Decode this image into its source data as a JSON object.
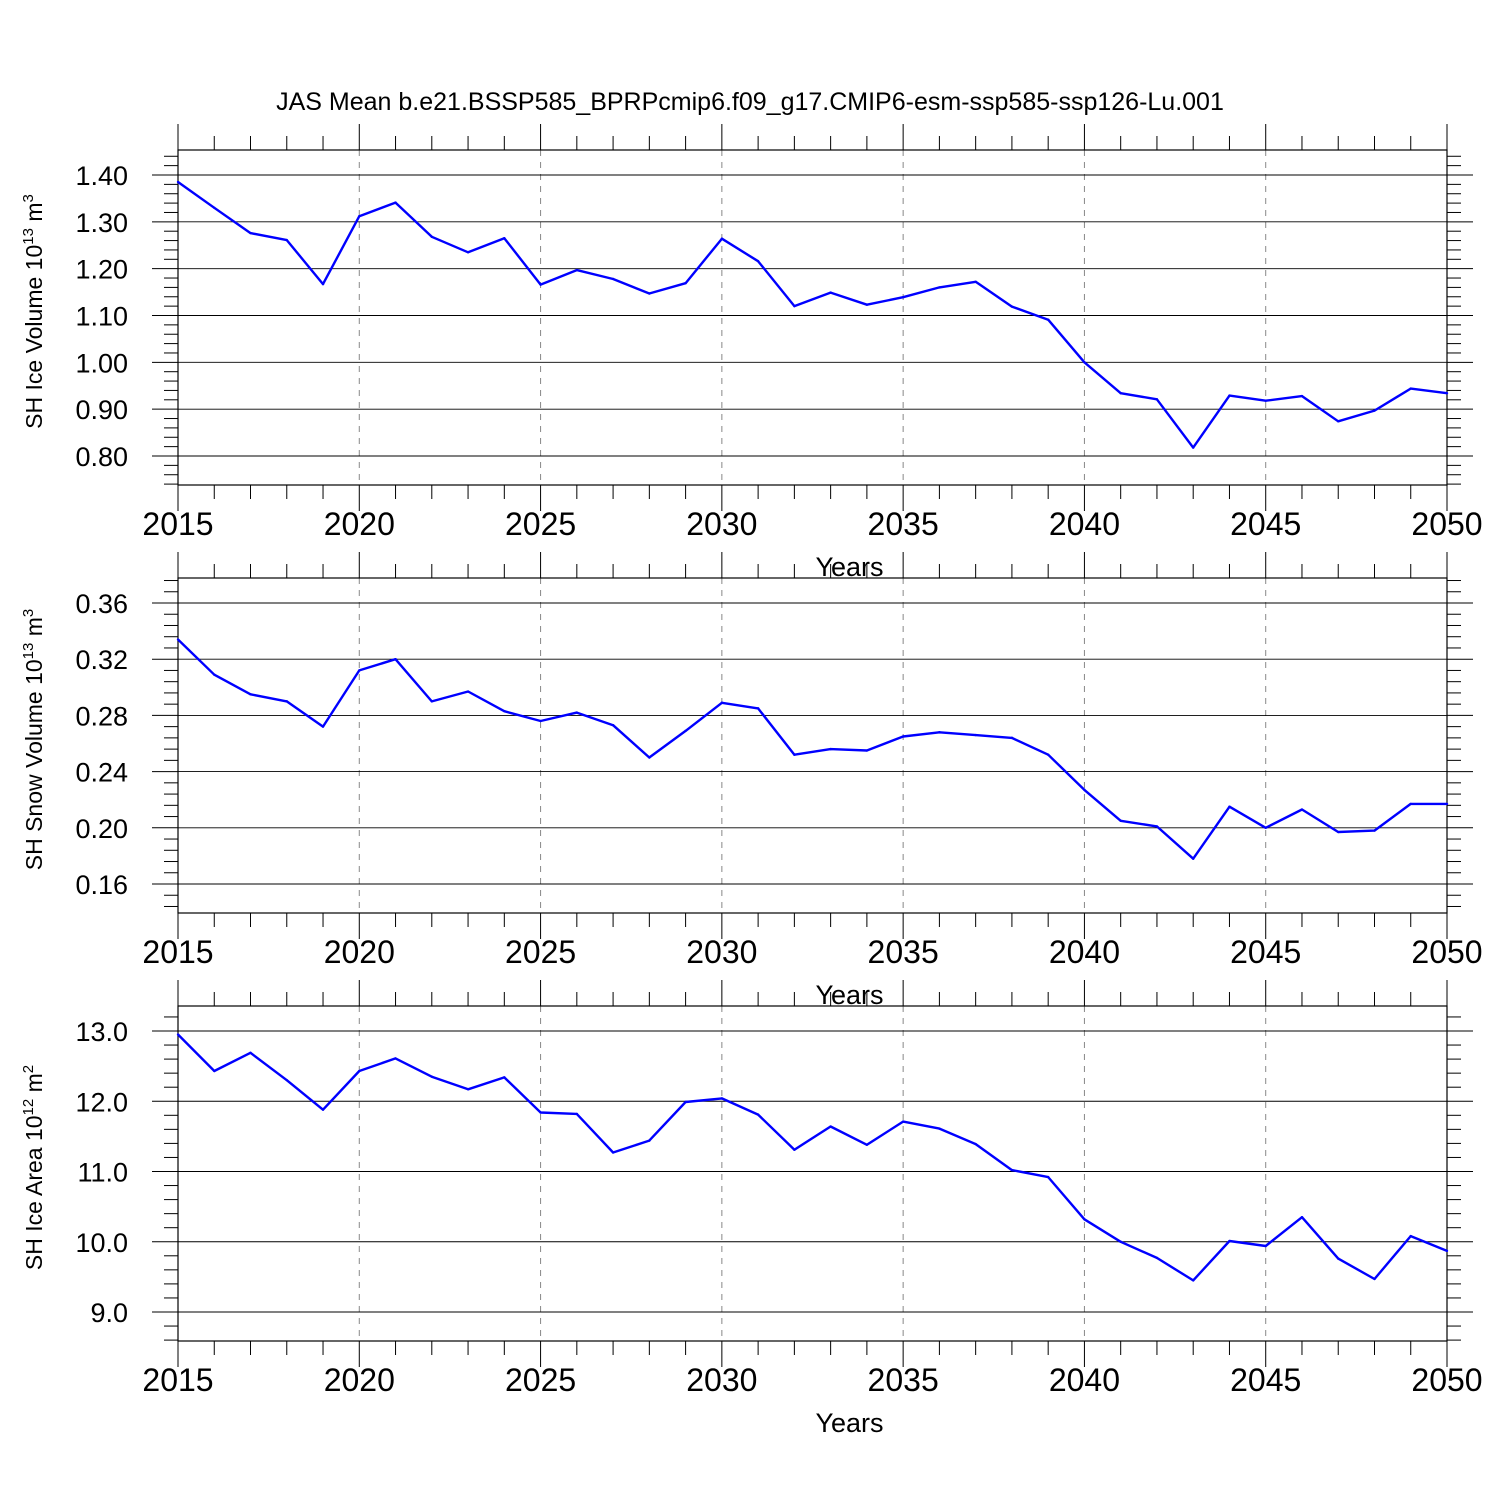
{
  "title": "JAS Mean b.e21.BSSP585_BPRPcmip6.f09_g17.CMIP6-esm-ssp585-ssp126-Lu.001",
  "colors": {
    "line": "#0000ff",
    "axes": "#000000",
    "grid": "#888888"
  },
  "chart_data": [
    {
      "type": "line",
      "ylabel": {
        "prefix": "SH Ice Volume 10",
        "exp": "13",
        "unit": " m",
        "unit_exp": "3"
      },
      "xlabel": "Years",
      "xlim": [
        2015,
        2050
      ],
      "ylim": [
        0.8,
        1.4
      ],
      "y_ticks": [
        "0.80",
        "0.90",
        "1.00",
        "1.10",
        "1.20",
        "1.30",
        "1.40"
      ],
      "x_ticks": [
        "2015",
        "2020",
        "2025",
        "2030",
        "2035",
        "2040",
        "2045",
        "2050"
      ],
      "grid": "vertical dashed at x tick labels",
      "x": [
        2015,
        2016,
        2017,
        2018,
        2019,
        2020,
        2021,
        2022,
        2023,
        2024,
        2025,
        2026,
        2027,
        2028,
        2029,
        2030,
        2031,
        2032,
        2033,
        2034,
        2035,
        2036,
        2037,
        2038,
        2039,
        2040,
        2041,
        2042,
        2043,
        2044,
        2045,
        2046,
        2047,
        2048,
        2049,
        2050
      ],
      "y": [
        1.385,
        1.33,
        1.276,
        1.261,
        1.167,
        1.312,
        1.341,
        1.268,
        1.235,
        1.265,
        1.166,
        1.197,
        1.178,
        1.147,
        1.169,
        1.264,
        1.216,
        1.12,
        1.149,
        1.123,
        1.139,
        1.16,
        1.172,
        1.119,
        1.091,
        1.0,
        0.934,
        0.921,
        0.818,
        0.929,
        0.918,
        0.928,
        0.874,
        0.897,
        0.944,
        0.934
      ]
    },
    {
      "type": "line",
      "ylabel": {
        "prefix": "SH Snow Volume 10",
        "exp": "13",
        "unit": " m",
        "unit_exp": "3"
      },
      "xlabel": "Years",
      "xlim": [
        2015,
        2050
      ],
      "ylim": [
        0.152,
        0.372
      ],
      "y_ticks": [
        "0.16",
        "0.20",
        "0.24",
        "0.28",
        "0.32",
        "0.36"
      ],
      "x_ticks": [
        "2015",
        "2020",
        "2025",
        "2030",
        "2035",
        "2040",
        "2045",
        "2050"
      ],
      "grid": "vertical dashed at x tick labels",
      "x": [
        2015,
        2016,
        2017,
        2018,
        2019,
        2020,
        2021,
        2022,
        2023,
        2024,
        2025,
        2026,
        2027,
        2028,
        2029,
        2030,
        2031,
        2032,
        2033,
        2034,
        2035,
        2036,
        2037,
        2038,
        2039,
        2040,
        2041,
        2042,
        2043,
        2044,
        2045,
        2046,
        2047,
        2048,
        2049,
        2050
      ],
      "y": [
        0.334,
        0.309,
        0.295,
        0.29,
        0.272,
        0.312,
        0.32,
        0.29,
        0.297,
        0.283,
        0.276,
        0.282,
        0.273,
        0.25,
        0.269,
        0.289,
        0.285,
        0.252,
        0.256,
        0.255,
        0.265,
        0.268,
        0.266,
        0.264,
        0.252,
        0.227,
        0.205,
        0.201,
        0.178,
        0.215,
        0.2,
        0.213,
        0.197,
        0.198,
        0.217,
        0.217
      ]
    },
    {
      "type": "line",
      "ylabel": {
        "prefix": "SH Ice Area 10",
        "exp": "12",
        "unit": " m",
        "unit_exp": "2"
      },
      "xlabel": "Years",
      "xlim": [
        2015,
        2050
      ],
      "ylim": [
        9.0,
        13.0
      ],
      "y_ticks": [
        "9.0",
        "10.0",
        "11.0",
        "12.0",
        "13.0"
      ],
      "x_ticks": [
        "2015",
        "2020",
        "2025",
        "2030",
        "2035",
        "2040",
        "2045",
        "2050"
      ],
      "grid": "vertical dashed at x tick labels",
      "x": [
        2015,
        2016,
        2017,
        2018,
        2019,
        2020,
        2021,
        2022,
        2023,
        2024,
        2025,
        2026,
        2027,
        2028,
        2029,
        2030,
        2031,
        2032,
        2033,
        2034,
        2035,
        2036,
        2037,
        2038,
        2039,
        2040,
        2041,
        2042,
        2043,
        2044,
        2045,
        2046,
        2047,
        2048,
        2049,
        2050
      ],
      "y": [
        12.95,
        12.43,
        12.69,
        12.3,
        11.88,
        12.43,
        12.61,
        12.35,
        12.17,
        12.34,
        11.84,
        11.82,
        11.27,
        11.44,
        11.99,
        12.04,
        11.81,
        11.31,
        11.64,
        11.38,
        11.71,
        11.61,
        11.39,
        11.02,
        10.92,
        10.32,
        10.0,
        9.77,
        9.45,
        10.01,
        9.94,
        10.35,
        9.76,
        9.47,
        10.08,
        9.87
      ]
    }
  ]
}
